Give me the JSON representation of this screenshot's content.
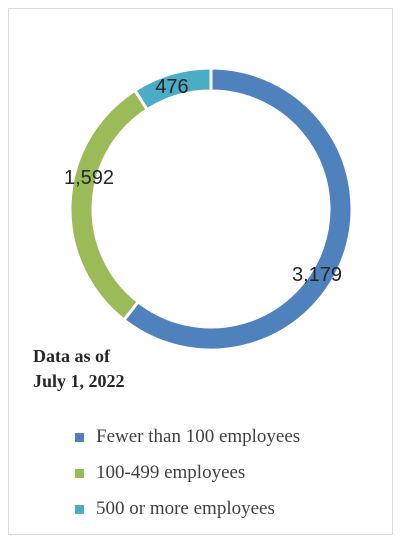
{
  "chart_data": {
    "type": "pie",
    "variant": "donut",
    "categories": [
      "Fewer than 100 employees",
      "100-499 employees",
      "500 or more employees"
    ],
    "values": [
      3179,
      1592,
      476
    ],
    "value_labels": [
      "3,179",
      "1,592",
      "476"
    ],
    "colors": [
      "#4f81bd",
      "#9bbb59",
      "#4bacc6"
    ],
    "legend_position": "bottom",
    "title": ""
  },
  "note": {
    "line1": "Data as of",
    "line2": "July 1, 2022"
  }
}
